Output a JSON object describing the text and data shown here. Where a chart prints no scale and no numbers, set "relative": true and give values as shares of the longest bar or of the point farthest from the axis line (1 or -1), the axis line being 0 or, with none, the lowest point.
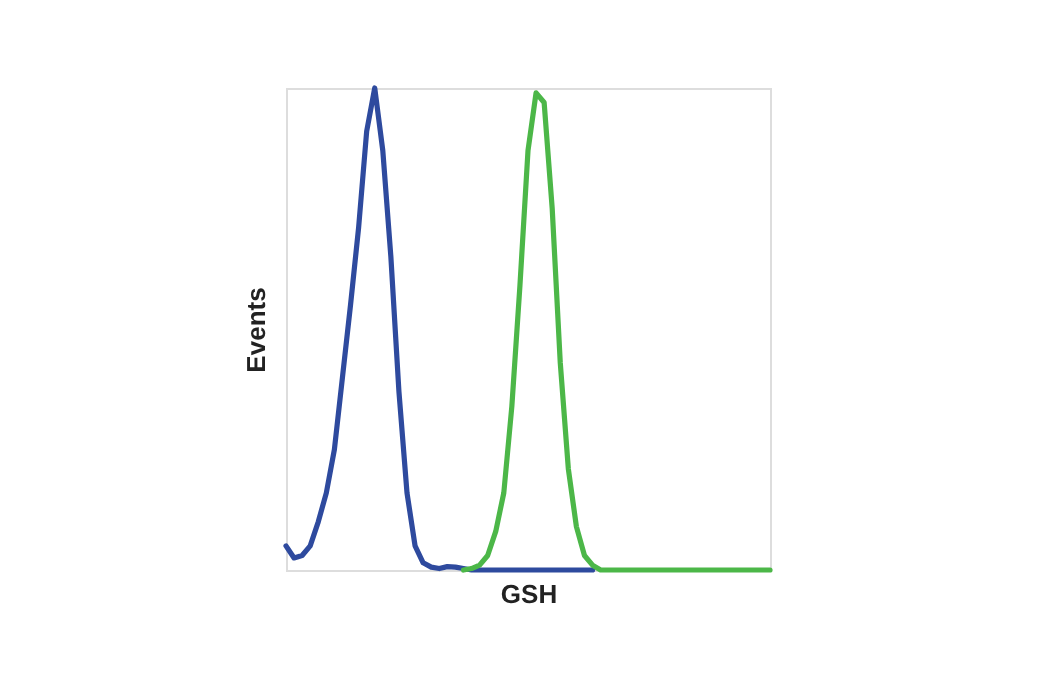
{
  "chart_data": {
    "type": "line",
    "relative": true,
    "xlabel": "GSH",
    "ylabel": "Events",
    "grid": false,
    "legend": false,
    "tick_labels": false,
    "line_style": "solid",
    "marker": "none",
    "categories": [
      null,
      null,
      null,
      null,
      null,
      null,
      null,
      null,
      null,
      null,
      null,
      null,
      null,
      null,
      null,
      null,
      null,
      null,
      null,
      null,
      null,
      null,
      null,
      null,
      null,
      null,
      null,
      null,
      null,
      null,
      null,
      null,
      null,
      null,
      null,
      null,
      null,
      null,
      null,
      null,
      null,
      null,
      null,
      null,
      null,
      null,
      null,
      null,
      null,
      null,
      null,
      null,
      null,
      null,
      null,
      null,
      null,
      null,
      null,
      null,
      null
    ],
    "series": [
      {
        "color": "#2e4a9e",
        "values": [
          0.05,
          0.025,
          0.03,
          0.05,
          0.1,
          0.16,
          0.25,
          0.4,
          0.55,
          0.71,
          0.91,
          1.0,
          0.87,
          0.65,
          0.37,
          0.16,
          0.05,
          0.015,
          0.006,
          0.003,
          0.007,
          0.006,
          0.003,
          0,
          0,
          0,
          0,
          0,
          0,
          0,
          0,
          0,
          0,
          0,
          0,
          0,
          0,
          0,
          0,
          null,
          null,
          null,
          null,
          null,
          null,
          null,
          null,
          null,
          null,
          null,
          null,
          null,
          null,
          null,
          null,
          null,
          null,
          null,
          null,
          null,
          null
        ]
      },
      {
        "color": "#4cb748",
        "values": [
          null,
          null,
          null,
          null,
          null,
          null,
          null,
          null,
          null,
          null,
          null,
          null,
          null,
          null,
          null,
          null,
          null,
          null,
          null,
          null,
          null,
          null,
          0,
          0.003,
          0.01,
          0.03,
          0.08,
          0.16,
          0.34,
          0.59,
          0.87,
          0.99,
          0.97,
          0.75,
          0.43,
          0.21,
          0.09,
          0.03,
          0.01,
          0,
          0,
          0,
          0,
          0,
          0,
          0,
          0,
          0,
          0,
          0,
          0,
          0,
          0,
          0,
          0,
          0,
          0,
          0,
          0,
          0,
          0
        ]
      }
    ]
  }
}
